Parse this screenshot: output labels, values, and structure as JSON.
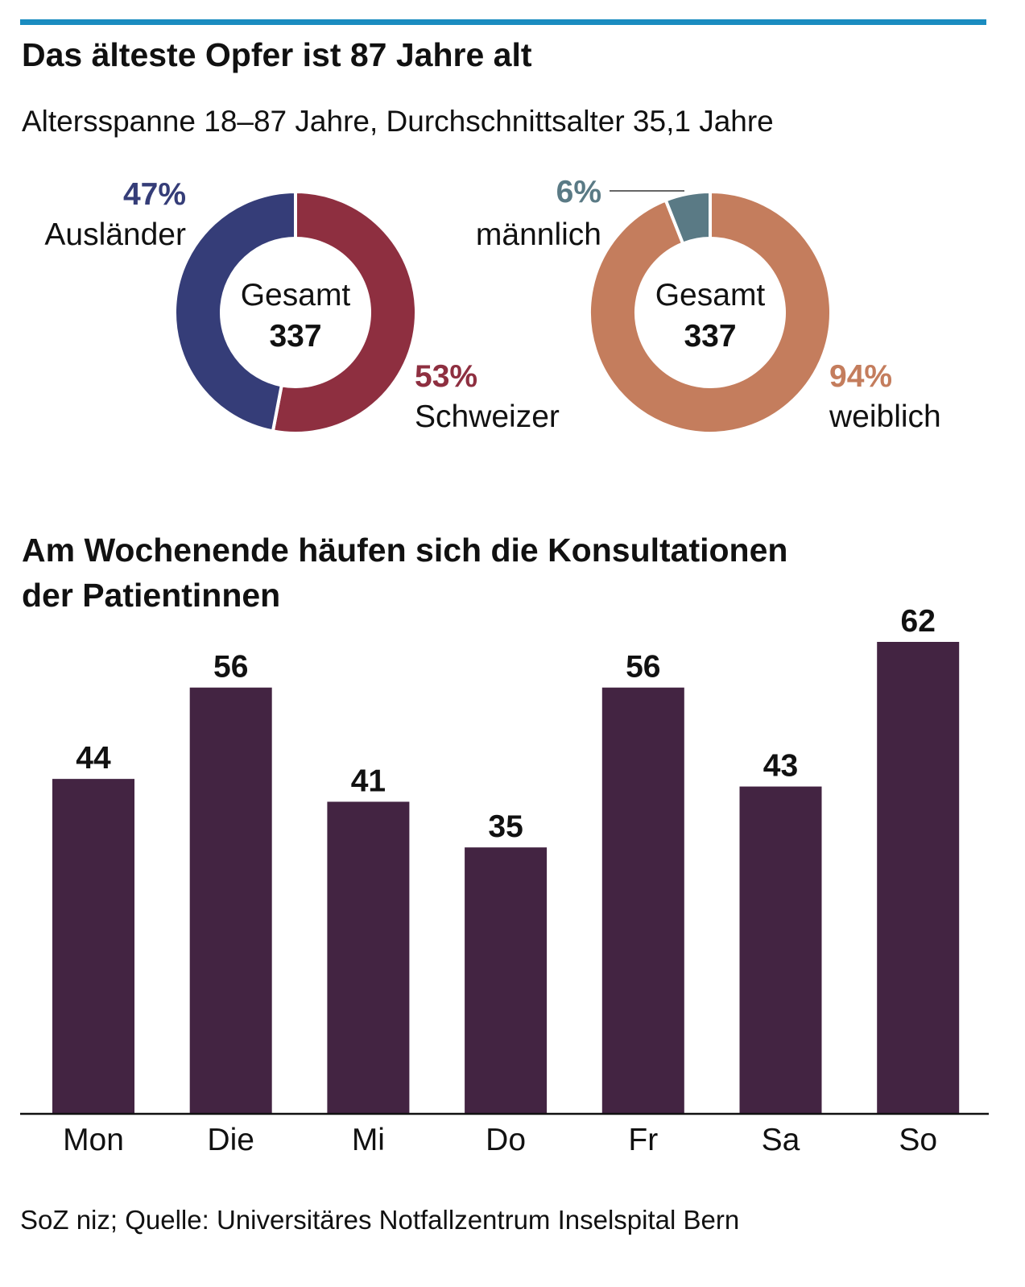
{
  "colors": {
    "accent": "#1a8cc0",
    "auslaender": "#353d78",
    "schweizer": "#8e2f40",
    "maennlich": "#5a7a85",
    "weiblich": "#c47d5d",
    "bars": "#432442"
  },
  "title": "Das älteste Opfer ist 87 Jahre alt",
  "subtitle": "Altersspanne 18–87 Jahre, Durchschnittsalter 35,1 Jahre",
  "title2_line1": "Am Wochenende häufen sich die Konsultationen",
  "title2_line2": "der Patientinnen",
  "source": "SoZ niz; Quelle: Universitäres Notfallzentrum Inselspital Bern",
  "chart_data": [
    {
      "type": "pie",
      "variant": "donut",
      "center_label": "Gesamt",
      "center_value": "337",
      "slices": [
        {
          "label": "Schweizer",
          "value": 53,
          "display": "53%"
        },
        {
          "label": "Ausländer",
          "value": 47,
          "display": "47%"
        }
      ]
    },
    {
      "type": "pie",
      "variant": "donut",
      "center_label": "Gesamt",
      "center_value": "337",
      "slices": [
        {
          "label": "weiblich",
          "value": 94,
          "display": "94%"
        },
        {
          "label": "männlich",
          "value": 6,
          "display": "6%"
        }
      ]
    },
    {
      "type": "bar",
      "categories": [
        "Mon",
        "Die",
        "Mi",
        "Do",
        "Fr",
        "Sa",
        "So"
      ],
      "values": [
        44,
        56,
        41,
        35,
        56,
        43,
        62
      ],
      "ylim": [
        0,
        62
      ],
      "grid": false
    }
  ]
}
